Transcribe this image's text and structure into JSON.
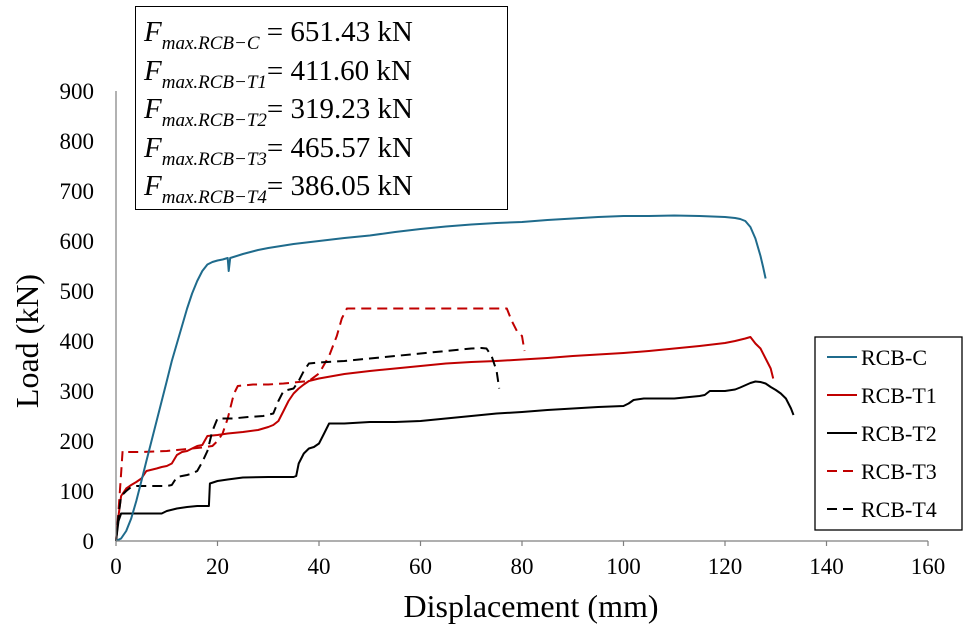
{
  "chart_data": {
    "type": "line",
    "xlabel": "Displacement (mm)",
    "ylabel": "Load (kN)",
    "xlim": [
      0,
      160
    ],
    "ylim": [
      0,
      900
    ],
    "xticks": [
      0,
      20,
      40,
      60,
      80,
      100,
      120,
      140,
      160
    ],
    "yticks": [
      0,
      100,
      200,
      300,
      400,
      500,
      600,
      700,
      800,
      900
    ],
    "grid": false,
    "legend_position": "bottom-right",
    "annotations": [
      {
        "symbol": "F",
        "subscript": "max.RCB−C",
        "value": " = 651.43 kN"
      },
      {
        "symbol": "F",
        "subscript": "max.RCB−T1",
        "value": "= 411.60 kN"
      },
      {
        "symbol": "F",
        "subscript": "max.RCB−T2",
        "value": "= 319.23 kN"
      },
      {
        "symbol": "F",
        "subscript": "max.RCB−T3",
        "value": "= 465.57 kN"
      },
      {
        "symbol": "F",
        "subscript": "max.RCB−T4",
        "value": "= 386.05 kN"
      }
    ],
    "series": [
      {
        "name": "RCB-C",
        "color": "#1f6b8c",
        "dash": "solid",
        "points": [
          [
            0,
            0
          ],
          [
            1,
            5
          ],
          [
            2,
            20
          ],
          [
            3,
            45
          ],
          [
            4,
            80
          ],
          [
            5,
            120
          ],
          [
            6,
            160
          ],
          [
            7,
            200
          ],
          [
            8,
            240
          ],
          [
            9,
            280
          ],
          [
            10,
            320
          ],
          [
            11,
            360
          ],
          [
            12,
            395
          ],
          [
            13,
            430
          ],
          [
            14,
            465
          ],
          [
            15,
            495
          ],
          [
            16,
            520
          ],
          [
            17,
            540
          ],
          [
            18,
            553
          ],
          [
            19,
            558
          ],
          [
            20,
            561
          ],
          [
            21,
            563
          ],
          [
            22,
            566
          ],
          [
            22.2,
            540
          ],
          [
            22.5,
            566
          ],
          [
            25,
            574
          ],
          [
            28,
            582
          ],
          [
            30,
            586
          ],
          [
            35,
            594
          ],
          [
            40,
            600
          ],
          [
            45,
            606
          ],
          [
            50,
            611
          ],
          [
            55,
            618
          ],
          [
            60,
            624
          ],
          [
            65,
            629
          ],
          [
            70,
            633
          ],
          [
            75,
            636
          ],
          [
            80,
            638
          ],
          [
            85,
            642
          ],
          [
            90,
            645
          ],
          [
            95,
            648
          ],
          [
            100,
            650
          ],
          [
            105,
            650
          ],
          [
            110,
            651
          ],
          [
            115,
            650
          ],
          [
            120,
            648
          ],
          [
            122,
            646
          ],
          [
            123,
            644
          ],
          [
            124,
            640
          ],
          [
            125,
            628
          ],
          [
            126,
            605
          ],
          [
            127,
            570
          ],
          [
            127.5,
            548
          ],
          [
            128,
            525
          ]
        ]
      },
      {
        "name": "RCB-T1",
        "color": "#c00000",
        "dash": "solid",
        "points": [
          [
            0,
            0
          ],
          [
            0.5,
            50
          ],
          [
            1,
            90
          ],
          [
            2,
            105
          ],
          [
            3,
            112
          ],
          [
            4,
            118
          ],
          [
            5,
            125
          ],
          [
            6,
            140
          ],
          [
            8,
            145
          ],
          [
            9,
            148
          ],
          [
            10,
            150
          ],
          [
            11,
            155
          ],
          [
            12,
            172
          ],
          [
            13,
            178
          ],
          [
            14,
            180
          ],
          [
            15,
            185
          ],
          [
            16,
            190
          ],
          [
            17,
            192
          ],
          [
            18,
            210
          ],
          [
            20,
            212
          ],
          [
            22,
            215
          ],
          [
            25,
            218
          ],
          [
            28,
            222
          ],
          [
            30,
            228
          ],
          [
            31,
            232
          ],
          [
            32,
            240
          ],
          [
            33,
            260
          ],
          [
            34,
            280
          ],
          [
            35,
            295
          ],
          [
            36,
            305
          ],
          [
            37,
            313
          ],
          [
            38,
            320
          ],
          [
            40,
            325
          ],
          [
            45,
            334
          ],
          [
            50,
            340
          ],
          [
            55,
            345
          ],
          [
            60,
            350
          ],
          [
            65,
            355
          ],
          [
            70,
            358
          ],
          [
            75,
            360
          ],
          [
            80,
            363
          ],
          [
            85,
            366
          ],
          [
            90,
            370
          ],
          [
            95,
            373
          ],
          [
            100,
            376
          ],
          [
            105,
            380
          ],
          [
            110,
            385
          ],
          [
            115,
            390
          ],
          [
            120,
            396
          ],
          [
            122,
            400
          ],
          [
            124,
            405
          ],
          [
            125,
            408
          ],
          [
            126,
            395
          ],
          [
            127,
            385
          ],
          [
            128,
            365
          ],
          [
            129,
            345
          ],
          [
            129.5,
            325
          ]
        ]
      },
      {
        "name": "RCB-T2",
        "color": "#000000",
        "dash": "solid",
        "points": [
          [
            0,
            0
          ],
          [
            0.5,
            40
          ],
          [
            1,
            55
          ],
          [
            5,
            55
          ],
          [
            9,
            55
          ],
          [
            10,
            60
          ],
          [
            12,
            65
          ],
          [
            14,
            68
          ],
          [
            16,
            70
          ],
          [
            18,
            70
          ],
          [
            18.3,
            70
          ],
          [
            18.5,
            115
          ],
          [
            20,
            120
          ],
          [
            22,
            123
          ],
          [
            25,
            127
          ],
          [
            30,
            128
          ],
          [
            35,
            128
          ],
          [
            35.5,
            130
          ],
          [
            36,
            155
          ],
          [
            37,
            175
          ],
          [
            38,
            185
          ],
          [
            39,
            188
          ],
          [
            40,
            195
          ],
          [
            41,
            215
          ],
          [
            42,
            235
          ],
          [
            45,
            235
          ],
          [
            50,
            238
          ],
          [
            55,
            238
          ],
          [
            60,
            240
          ],
          [
            65,
            245
          ],
          [
            70,
            250
          ],
          [
            75,
            255
          ],
          [
            80,
            258
          ],
          [
            85,
            262
          ],
          [
            90,
            265
          ],
          [
            95,
            268
          ],
          [
            100,
            270
          ],
          [
            101,
            275
          ],
          [
            102,
            282
          ],
          [
            104,
            285
          ],
          [
            110,
            285
          ],
          [
            115,
            290
          ],
          [
            116,
            292
          ],
          [
            117,
            300
          ],
          [
            120,
            300
          ],
          [
            122,
            303
          ],
          [
            123,
            307
          ],
          [
            125,
            316
          ],
          [
            126,
            319
          ],
          [
            127,
            318
          ],
          [
            128,
            315
          ],
          [
            129,
            308
          ],
          [
            130,
            302
          ],
          [
            131,
            295
          ],
          [
            132,
            285
          ],
          [
            133,
            265
          ],
          [
            133.5,
            252
          ]
        ]
      },
      {
        "name": "RCB-T3",
        "color": "#c00000",
        "dash": "dashed",
        "points": [
          [
            0,
            0
          ],
          [
            0.5,
            60
          ],
          [
            1,
            135
          ],
          [
            1.3,
            180
          ],
          [
            2,
            178
          ],
          [
            5,
            178
          ],
          [
            10,
            180
          ],
          [
            12,
            182
          ],
          [
            15,
            185
          ],
          [
            17,
            187
          ],
          [
            19,
            190
          ],
          [
            20,
            200
          ],
          [
            21,
            215
          ],
          [
            22,
            245
          ],
          [
            23,
            285
          ],
          [
            23.5,
            300
          ],
          [
            24,
            310
          ],
          [
            27,
            313
          ],
          [
            30,
            313
          ],
          [
            33,
            315
          ],
          [
            36,
            318
          ],
          [
            38,
            320
          ],
          [
            40,
            335
          ],
          [
            42,
            370
          ],
          [
            43.5,
            410
          ],
          [
            44.5,
            445
          ],
          [
            45.5,
            465
          ],
          [
            50,
            465
          ],
          [
            60,
            465
          ],
          [
            70,
            465
          ],
          [
            77,
            465
          ],
          [
            78,
            440
          ],
          [
            79,
            420
          ],
          [
            80,
            410
          ],
          [
            80.5,
            380
          ]
        ]
      },
      {
        "name": "RCB-T4",
        "color": "#000000",
        "dash": "dashed",
        "points": [
          [
            0,
            0
          ],
          [
            0.5,
            50
          ],
          [
            1,
            90
          ],
          [
            2,
            100
          ],
          [
            3,
            108
          ],
          [
            4,
            110
          ],
          [
            10,
            110
          ],
          [
            11,
            112
          ],
          [
            12,
            128
          ],
          [
            13,
            130
          ],
          [
            14,
            132
          ],
          [
            15,
            135
          ],
          [
            16,
            140
          ],
          [
            17,
            158
          ],
          [
            18,
            180
          ],
          [
            19,
            220
          ],
          [
            20,
            245
          ],
          [
            23,
            245
          ],
          [
            26,
            248
          ],
          [
            29,
            250
          ],
          [
            31,
            255
          ],
          [
            32,
            280
          ],
          [
            33,
            300
          ],
          [
            35,
            305
          ],
          [
            36,
            320
          ],
          [
            37,
            340
          ],
          [
            38,
            355
          ],
          [
            40,
            357
          ],
          [
            45,
            360
          ],
          [
            50,
            365
          ],
          [
            55,
            370
          ],
          [
            60,
            375
          ],
          [
            65,
            380
          ],
          [
            70,
            385
          ],
          [
            72,
            386
          ],
          [
            73,
            385
          ],
          [
            74,
            370
          ],
          [
            75,
            340
          ],
          [
            75.5,
            305
          ]
        ]
      }
    ]
  }
}
